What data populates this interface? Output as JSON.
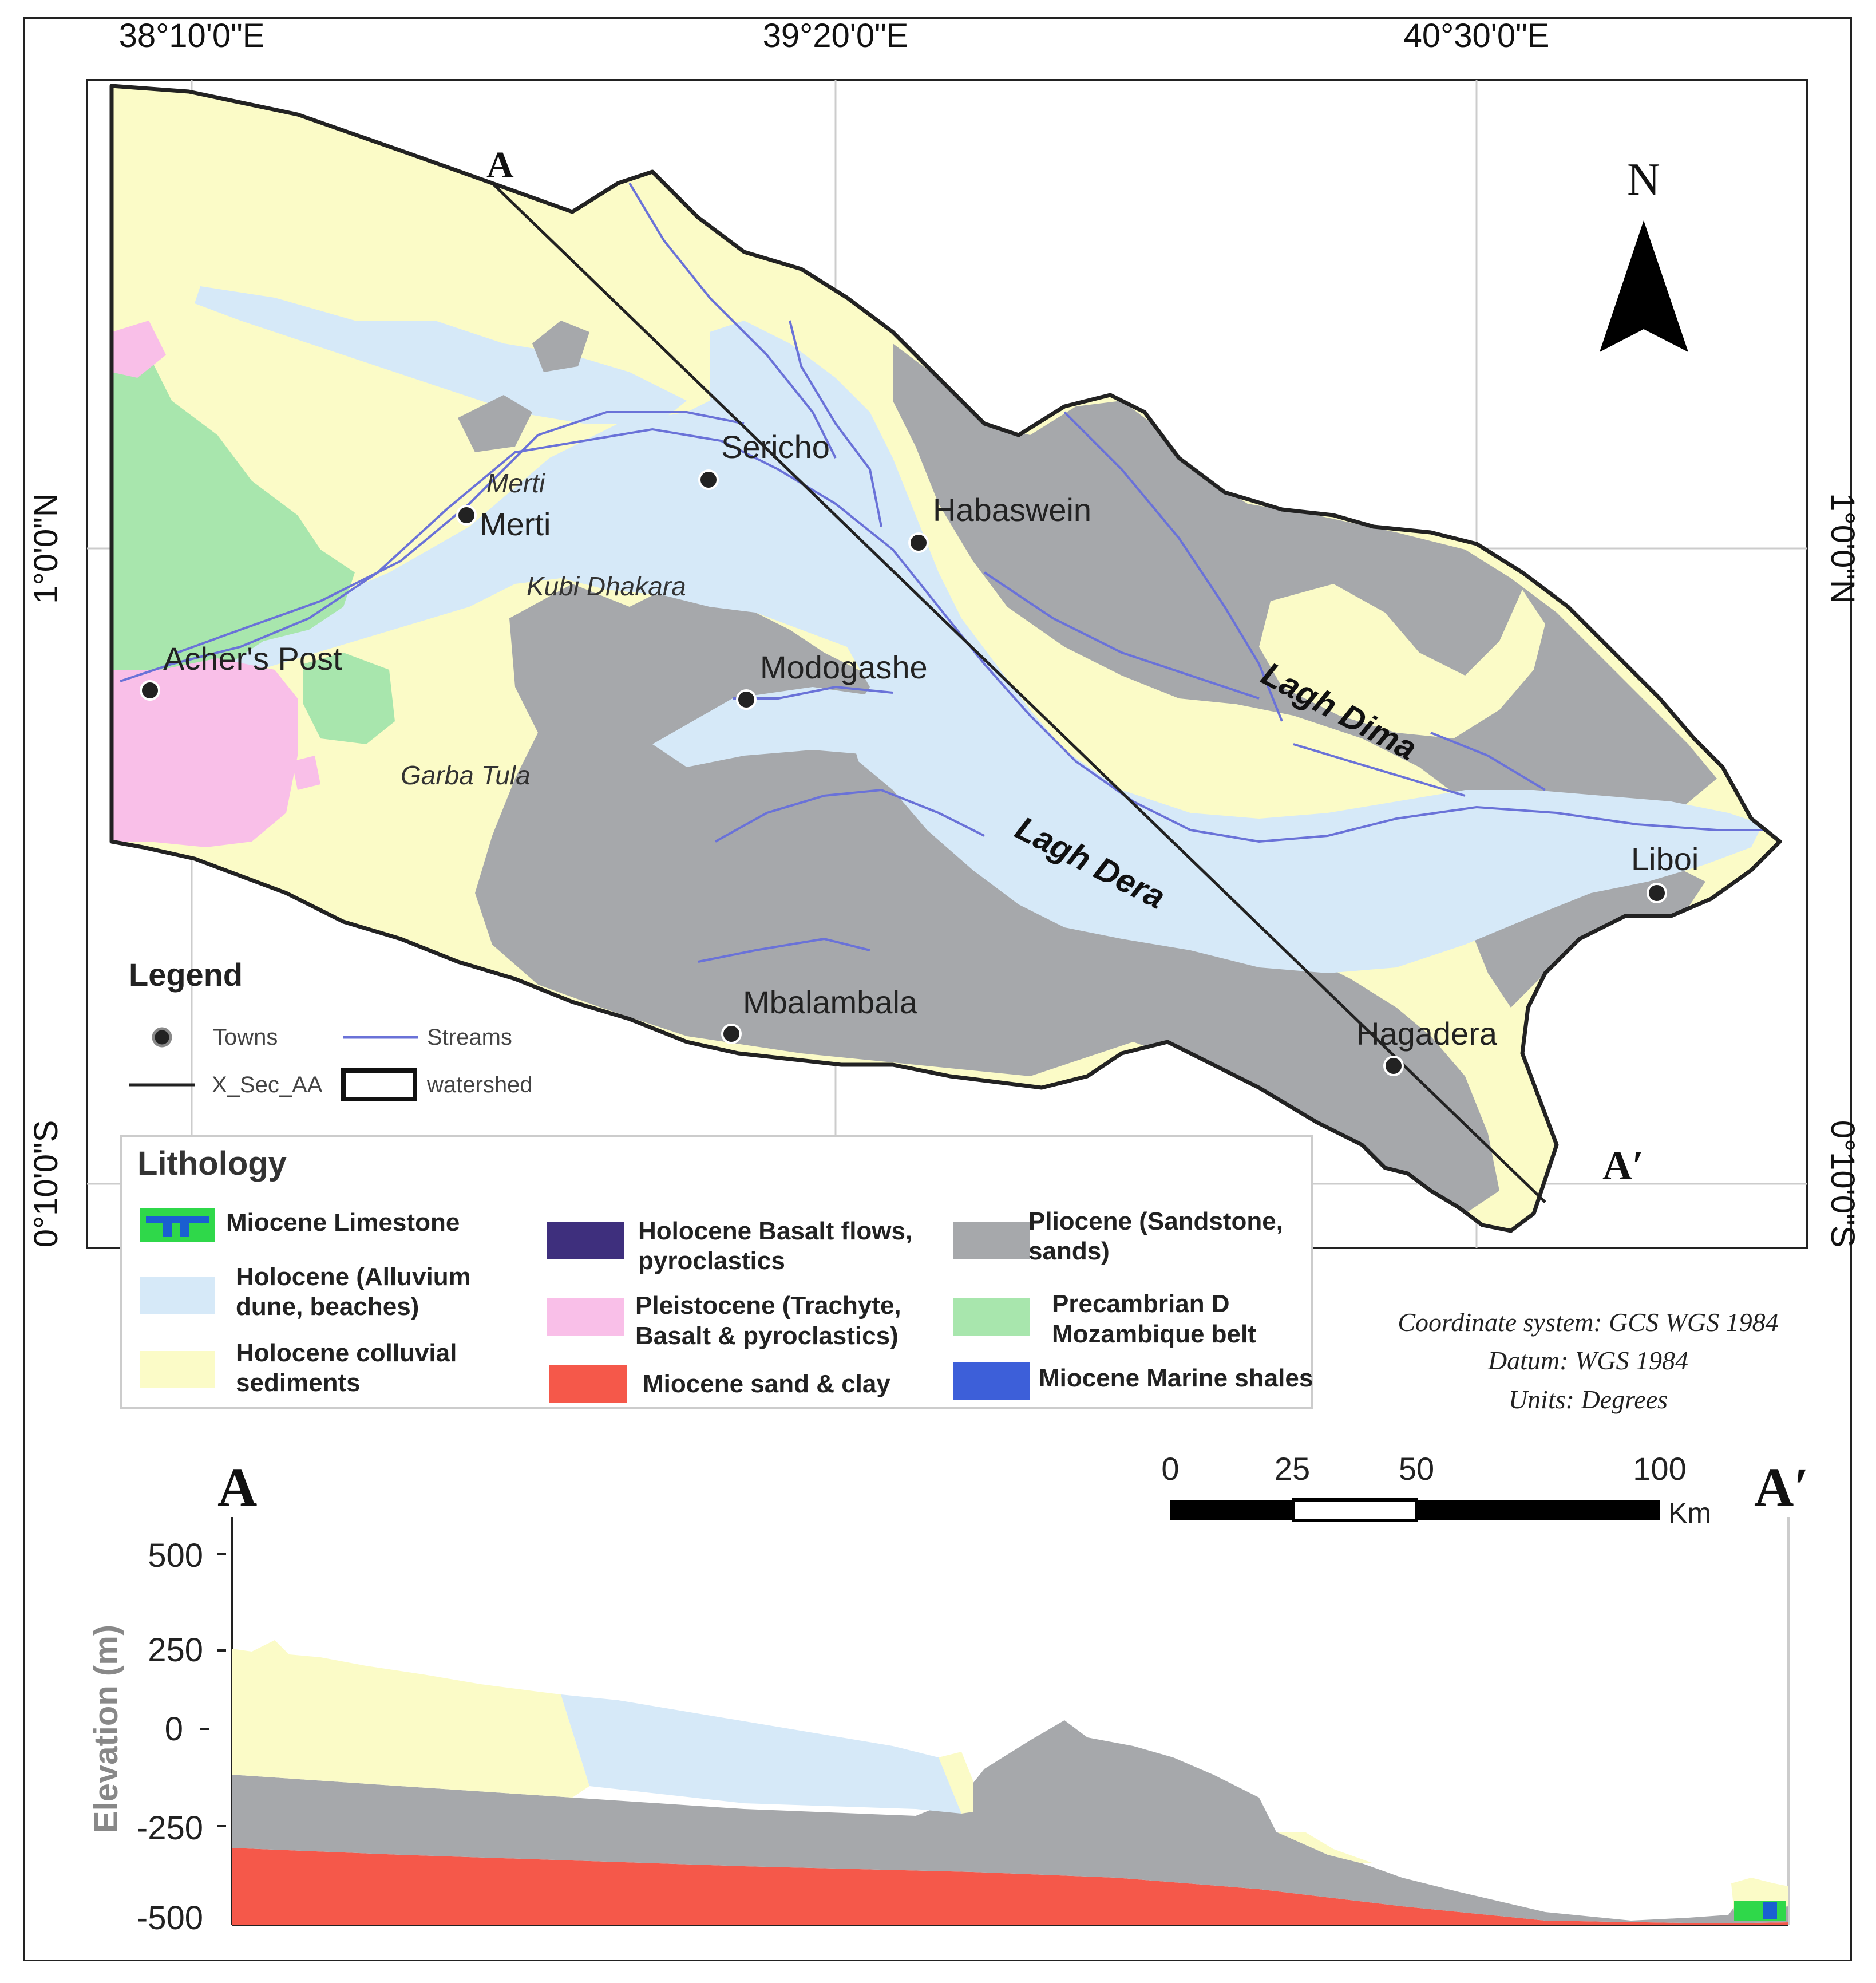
{
  "map": {
    "lon_labels": [
      "38°10'0\"E",
      "39°20'0\"E",
      "40°30'0\"E"
    ],
    "lat_labels": [
      "1°0'0\"N",
      "0°10'0\"S"
    ],
    "north_label": "N",
    "section_start": "A",
    "section_end": "A′",
    "towns": [
      "Sericho",
      "Merti",
      "Habaswein",
      "Acher's Post",
      "Modogashe",
      "Liboi",
      "Mbalambala",
      "Hagadera"
    ],
    "places": [
      "Merti",
      "Kubi Dhakara",
      "Garba Tula"
    ],
    "rivers": [
      "Lagh Dima",
      "Lagh Dera"
    ],
    "colors": {
      "holocene_alluvium": "#d6e9f8",
      "holocene_colluvial": "#fbfbc7",
      "pliocene": "#a6a8ab",
      "pleistocene": "#f9bfe8",
      "precambrian": "#a8e6ad",
      "miocene_sand_clay": "#f5584a",
      "miocene_marine_shales": "#3d5fd9",
      "holocene_basalt": "#3e2f7d",
      "miocene_limestone_a": "#2fd84a",
      "miocene_limestone_b": "#1a5fd1",
      "streams": "#6a72d8"
    }
  },
  "legend": {
    "title": "Legend",
    "towns": "Towns",
    "streams": "Streams",
    "xsec": "X_Sec_AA",
    "watershed": "watershed"
  },
  "lithology": {
    "title": "Lithology",
    "items": [
      {
        "label": "Miocene Limestone"
      },
      {
        "label": "Holocene (Alluvium",
        "label2": "dune, beaches)"
      },
      {
        "label": "Holocene colluvial",
        "label2": "sediments"
      },
      {
        "label": "Holocene Basalt flows,",
        "label2": "pyroclastics"
      },
      {
        "label": "Pleistocene (Trachyte,",
        "label2": "Basalt & pyroclastics)"
      },
      {
        "label": "Miocene sand & clay"
      },
      {
        "label": "Pliocene (Sandstone,",
        "label2": "sands)"
      },
      {
        "label": "Precambrian D",
        "label2": "Mozambique belt"
      },
      {
        "label": "Miocene Marine shales"
      }
    ]
  },
  "coord_info": [
    "Coordinate system: GCS WGS 1984",
    "Datum: WGS 1984",
    "Units: Degrees"
  ],
  "scale_bar": {
    "ticks": [
      "0",
      "25",
      "50",
      "100"
    ],
    "unit": "Km"
  },
  "profile": {
    "start": "A",
    "end": "A′",
    "ylabel": "Elevation (m)",
    "yticks": [
      "500",
      "250",
      "0",
      "-250",
      "-500"
    ]
  }
}
